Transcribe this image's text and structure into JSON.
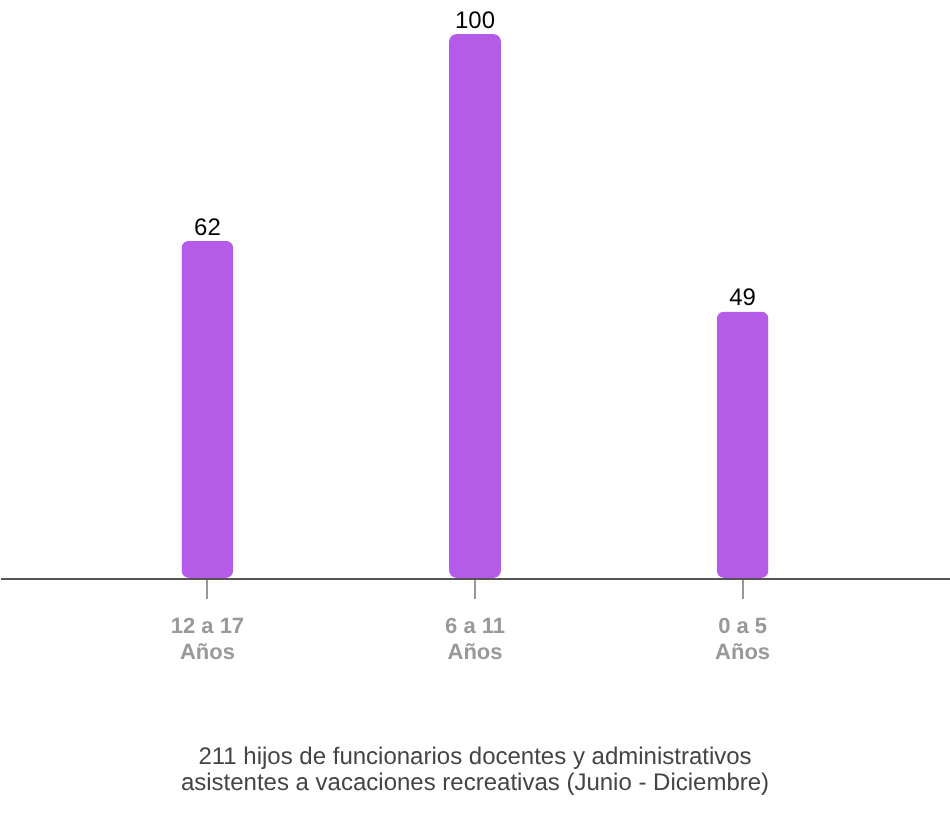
{
  "chart_data": {
    "type": "bar",
    "categories": [
      "12 a 17 Años",
      "6 a 11 Años",
      "0 a 5 Años"
    ],
    "values": [
      62,
      100,
      49
    ],
    "color": "#b45ce8",
    "data_labels": true,
    "grid": false,
    "annotations": [
      "211 hijos de funcionarios docentes y administrativos asistentes a vacaciones recreativas (Junio - Diciembre)"
    ]
  }
}
